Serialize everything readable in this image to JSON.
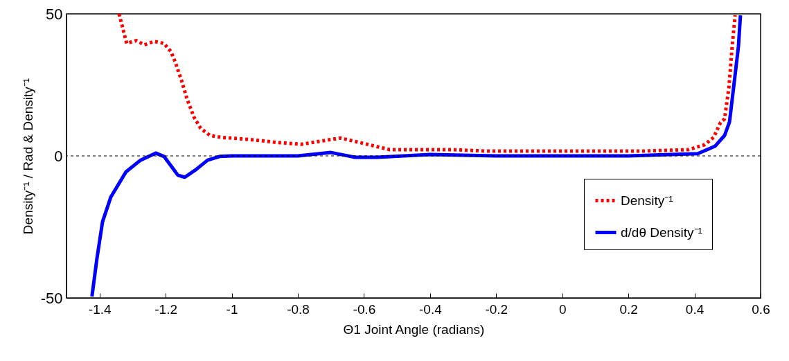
{
  "chart_data": {
    "type": "line",
    "xlabel": "Θ1 Joint Angle (radians)",
    "ylabel": "Density⁻¹ / Rad & Density⁻¹",
    "xlim": [
      -1.5,
      0.6
    ],
    "xticks": [
      -1.4,
      -1.2,
      -1,
      -0.8,
      -0.6,
      -0.4,
      -0.2,
      0,
      0.2,
      0.4,
      0.6
    ],
    "ylim": [
      -50,
      50
    ],
    "yticks": [
      -50,
      0,
      50
    ],
    "grid": false,
    "legend": "bottom right",
    "ref_lines": [
      {
        "axis": "y",
        "value": 0,
        "color": "#000000",
        "line_style": "dotted"
      }
    ],
    "series": [
      {
        "name": "Density⁻¹",
        "color": "#ff0000",
        "line_style": "dotted",
        "x": [
          -1.341,
          -1.318,
          -1.289,
          -1.265,
          -1.234,
          -1.205,
          -1.184,
          -1.171,
          -1.152,
          -1.136,
          -1.115,
          -1.094,
          -1.066,
          -1.031,
          -0.968,
          -0.905,
          -0.87,
          -0.79,
          -0.671,
          -0.616,
          -0.522,
          -0.33,
          -0.233,
          0.056,
          0.246,
          0.382,
          0.43,
          0.458,
          0.479,
          0.491,
          0.504,
          0.514,
          0.523
        ],
        "values": [
          50,
          39.6,
          40.6,
          39.1,
          40.3,
          39.6,
          36.7,
          33,
          26.6,
          20.3,
          13.8,
          9.7,
          7.2,
          6.5,
          6,
          5.3,
          4.8,
          4.1,
          6.3,
          4.8,
          2.2,
          2.2,
          1.7,
          1.7,
          1.7,
          2.2,
          3.9,
          6.5,
          11.8,
          13,
          24,
          38.6,
          49.5
        ]
      },
      {
        "name": "d/dθ Density⁻¹",
        "color": "#0000ff",
        "line_style": "solid",
        "x": [
          -1.423,
          -1.408,
          -1.391,
          -1.366,
          -1.32,
          -1.276,
          -1.23,
          -1.205,
          -1.163,
          -1.142,
          -1.108,
          -1.073,
          -1.037,
          -1,
          -0.8,
          -0.7,
          -0.627,
          -0.56,
          -0.4,
          -0.2,
          0,
          0.2,
          0.41,
          0.462,
          0.491,
          0.506,
          0.525,
          0.533,
          0.539
        ],
        "values": [
          -49.5,
          -36.2,
          -23.2,
          -14.5,
          -5.6,
          -1.5,
          1,
          -0.2,
          -6.8,
          -7.5,
          -4.8,
          -1.5,
          -0.2,
          0,
          0,
          1.2,
          -0.5,
          -0.5,
          0.5,
          0,
          0,
          0,
          0.8,
          3.4,
          7.2,
          12,
          30.6,
          38.6,
          49.5
        ]
      }
    ]
  }
}
